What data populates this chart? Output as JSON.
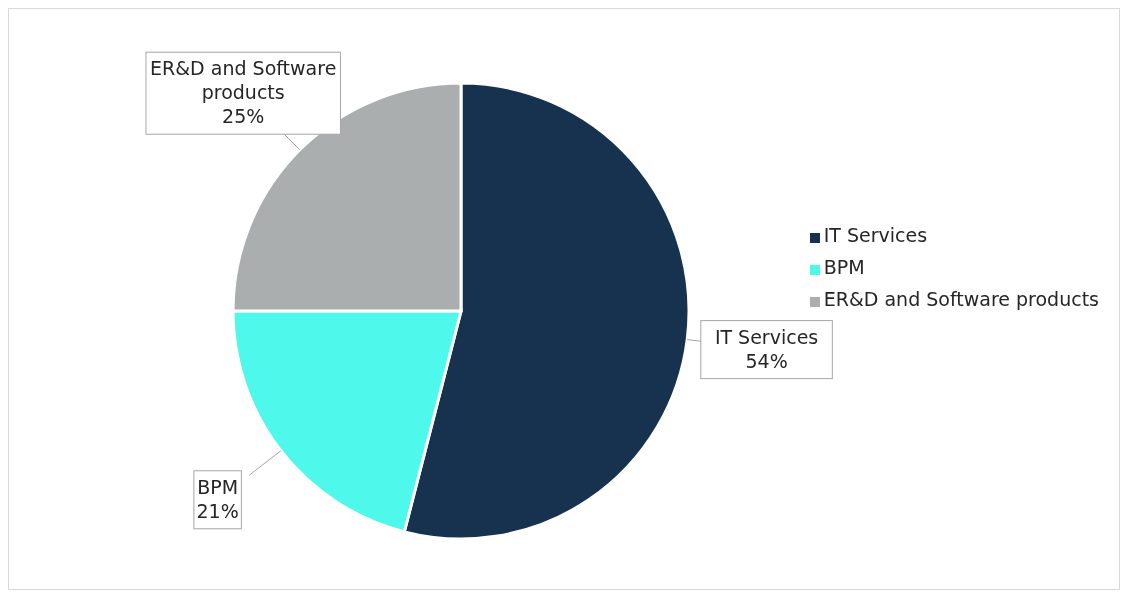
{
  "chart_data": {
    "type": "pie",
    "categories": [
      "IT Services",
      "BPM",
      "ER&D and Software products"
    ],
    "values": [
      54,
      21,
      25
    ],
    "colors": [
      "#17324f",
      "#4ef8ea",
      "#aaaeae"
    ],
    "value_labels": [
      "54%",
      "21%",
      "25%"
    ],
    "legend": "right"
  }
}
